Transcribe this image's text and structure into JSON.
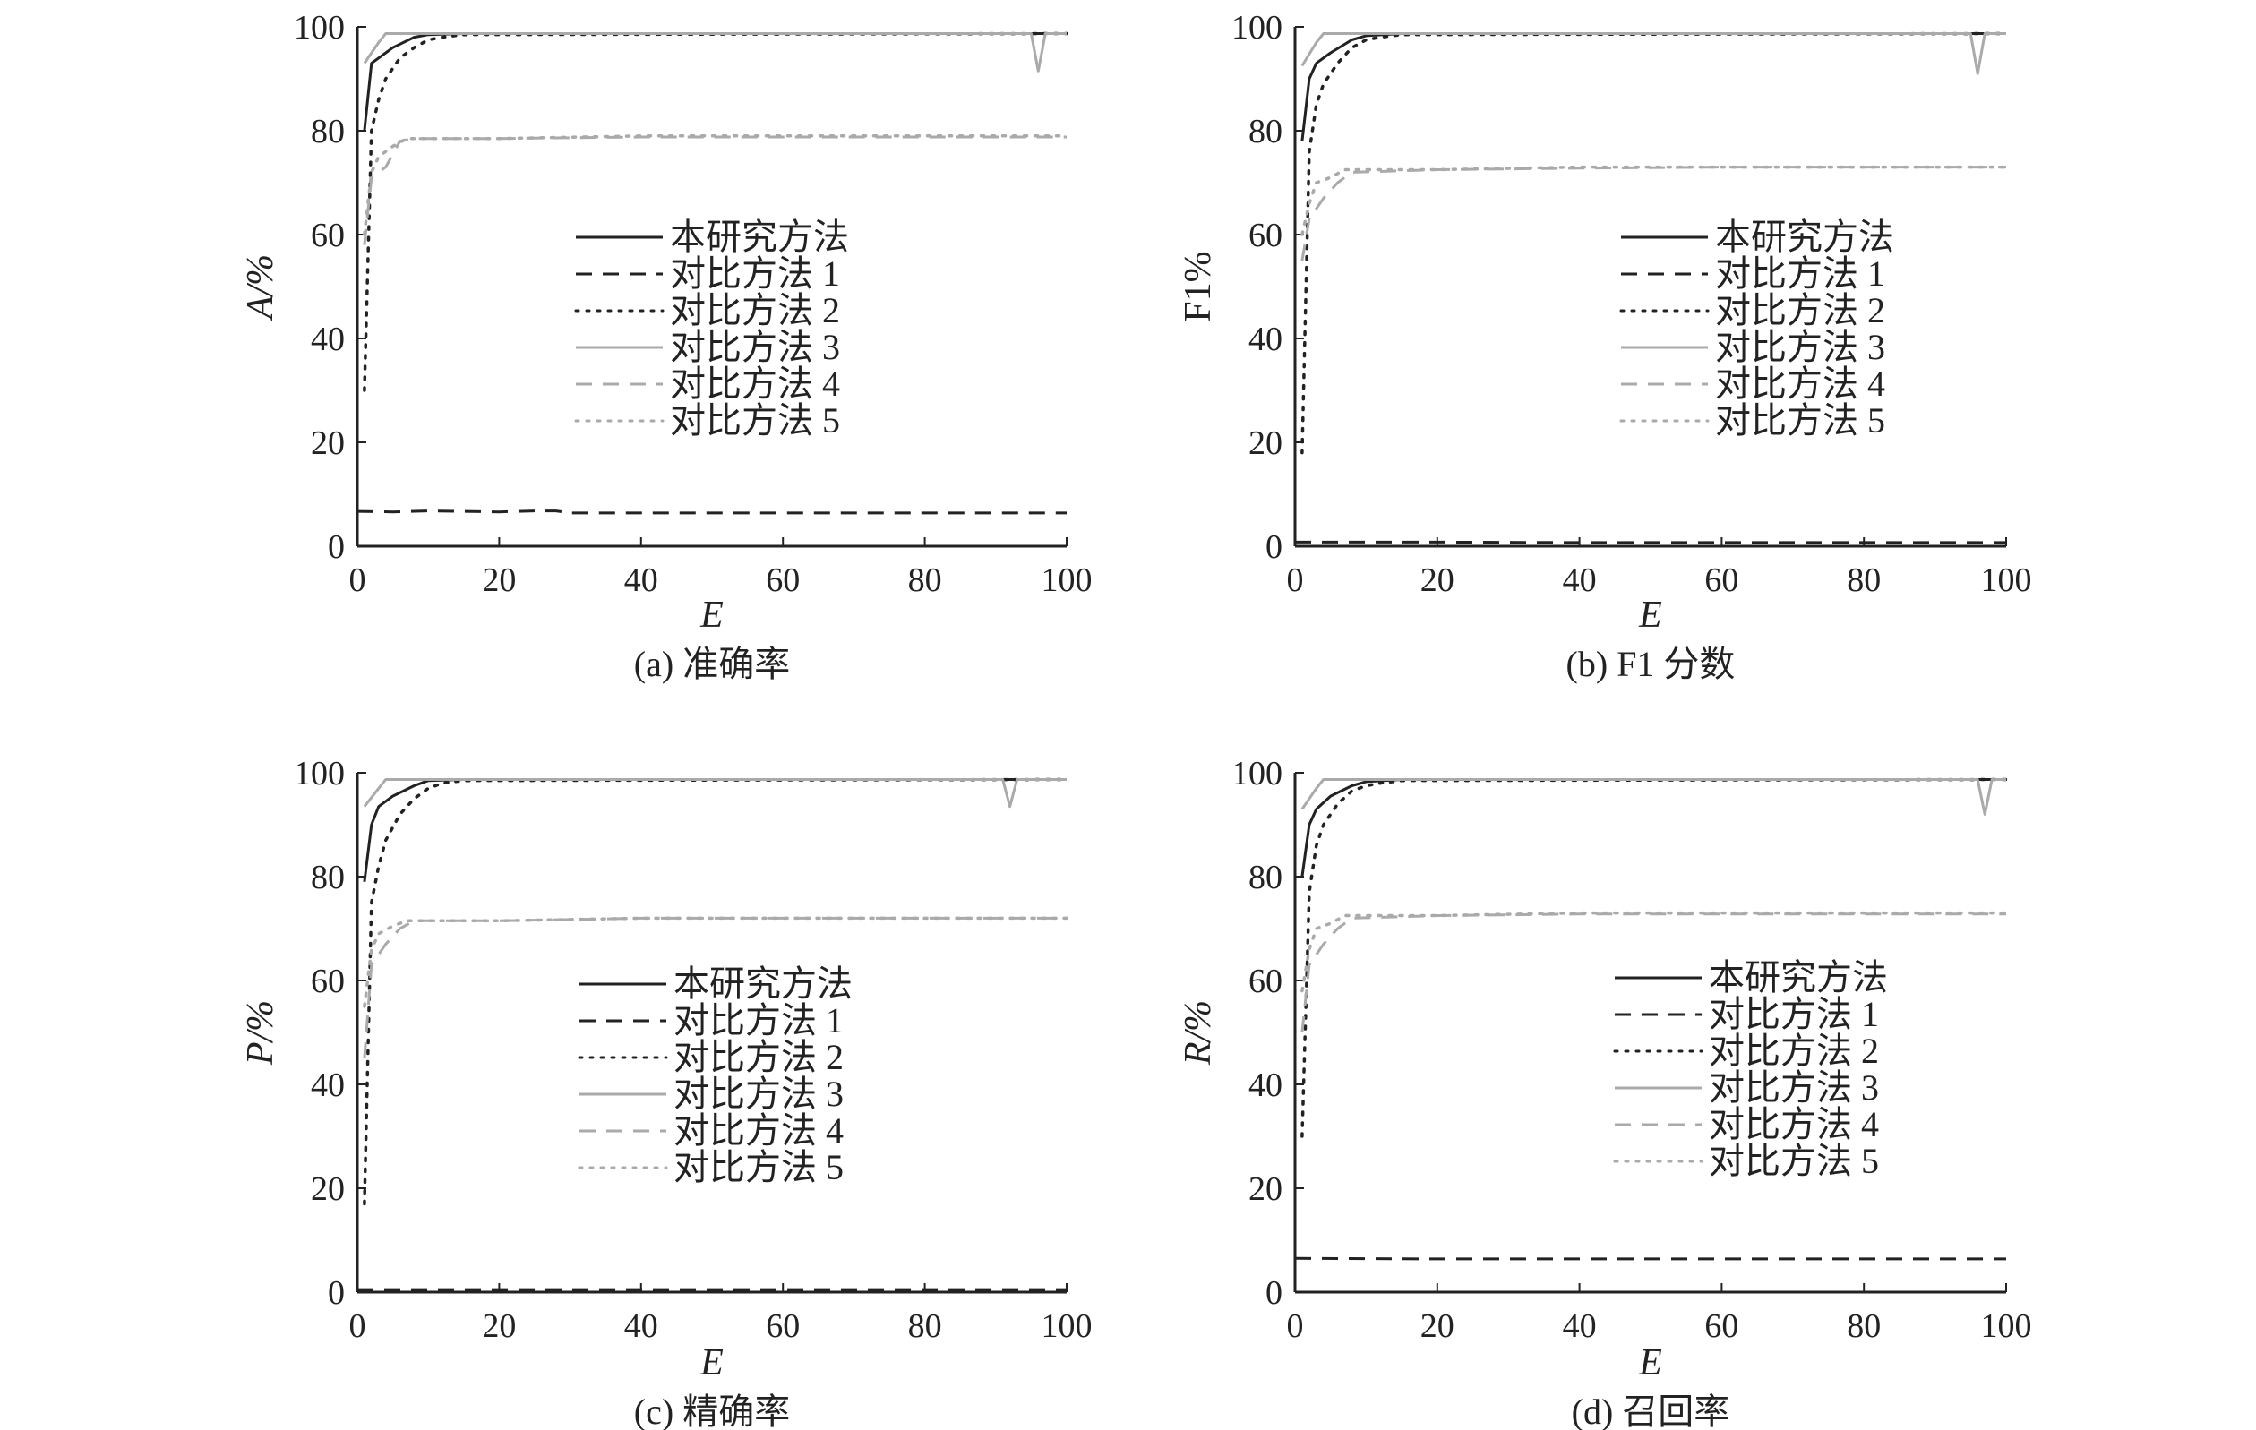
{
  "chart_data": [
    {
      "id": "a",
      "type": "line",
      "caption": "(a) 准确率",
      "xlabel": "E",
      "ylabel": "A/%",
      "xlim": [
        0,
        100
      ],
      "ylim": [
        0,
        100
      ],
      "xticks": [
        0,
        20,
        40,
        60,
        80,
        100
      ],
      "yticks": [
        0,
        20,
        40,
        60,
        80,
        100
      ],
      "grid": false,
      "legend_position": "center-right",
      "series": [
        {
          "name": "本研究方法",
          "style": "solid",
          "color": "#222222",
          "x": [
            1,
            2,
            3,
            5,
            8,
            10,
            15,
            100
          ],
          "y": [
            80,
            93,
            94,
            96,
            98,
            98.5,
            98.7,
            98.7
          ]
        },
        {
          "name": "对比方法 1",
          "style": "dashed",
          "color": "#222222",
          "x": [
            0,
            5,
            10,
            20,
            25,
            28,
            30,
            40,
            60,
            80,
            100
          ],
          "y": [
            6.7,
            6.6,
            6.8,
            6.6,
            6.8,
            6.8,
            6.4,
            6.4,
            6.4,
            6.4,
            6.4
          ]
        },
        {
          "name": "对比方法 2",
          "style": "dotted",
          "color": "#222222",
          "x": [
            1,
            2,
            3,
            4,
            6,
            8,
            10,
            12,
            15,
            100
          ],
          "y": [
            30,
            80,
            86,
            90,
            94,
            96,
            97.5,
            98,
            98.5,
            98.7
          ]
        },
        {
          "name": "对比方法 3",
          "style": "solid",
          "color": "#aaaaaa",
          "x": [
            1,
            3,
            4,
            6,
            95,
            96,
            97,
            100
          ],
          "y": [
            93,
            97,
            98.7,
            98.7,
            98.7,
            91.5,
            98.7,
            98.7
          ]
        },
        {
          "name": "对比方法 4",
          "style": "dashed",
          "color": "#aaaaaa",
          "x": [
            1,
            2,
            4,
            6,
            8,
            20,
            40,
            60,
            80,
            100
          ],
          "y": [
            58,
            71,
            73,
            78,
            78.5,
            78.5,
            78.8,
            78.8,
            78.8,
            78.8
          ]
        },
        {
          "name": "对比方法 5",
          "style": "dotted",
          "color": "#aaaaaa",
          "x": [
            1,
            2,
            3,
            5,
            7,
            20,
            40,
            60,
            80,
            100
          ],
          "y": [
            60,
            72,
            75,
            77,
            78.5,
            78.5,
            79,
            79,
            79,
            79
          ]
        }
      ]
    },
    {
      "id": "b",
      "type": "line",
      "caption": "(b) F1 分数",
      "xlabel": "E",
      "ylabel": "F1%",
      "xlim": [
        0,
        100
      ],
      "ylim": [
        0,
        100
      ],
      "xticks": [
        0,
        20,
        40,
        60,
        80,
        100
      ],
      "yticks": [
        0,
        20,
        40,
        60,
        80,
        100
      ],
      "grid": false,
      "legend_position": "center-right",
      "series": [
        {
          "name": "本研究方法",
          "style": "solid",
          "color": "#222222",
          "x": [
            1,
            2,
            3,
            5,
            8,
            10,
            15,
            100
          ],
          "y": [
            78,
            90,
            93,
            95,
            97.5,
            98.3,
            98.7,
            98.7
          ]
        },
        {
          "name": "对比方法 1",
          "style": "dashed",
          "color": "#222222",
          "x": [
            0,
            20,
            40,
            60,
            80,
            100
          ],
          "y": [
            0.8,
            0.8,
            0.7,
            0.7,
            0.7,
            0.7
          ]
        },
        {
          "name": "对比方法 2",
          "style": "dotted",
          "color": "#222222",
          "x": [
            1,
            2,
            3,
            4,
            6,
            8,
            10,
            12,
            15,
            100
          ],
          "y": [
            18,
            76,
            85,
            89,
            93,
            96,
            97.5,
            98,
            98.5,
            98.7
          ]
        },
        {
          "name": "对比方法 3",
          "style": "solid",
          "color": "#aaaaaa",
          "x": [
            1,
            3,
            4,
            6,
            95,
            96,
            97,
            100
          ],
          "y": [
            92.5,
            97,
            98.7,
            98.7,
            98.7,
            91,
            98.7,
            98.7
          ]
        },
        {
          "name": "对比方法 4",
          "style": "dashed",
          "color": "#aaaaaa",
          "x": [
            1,
            2,
            4,
            6,
            8,
            20,
            40,
            60,
            80,
            100
          ],
          "y": [
            55,
            63,
            67,
            70,
            72,
            72.5,
            72.8,
            73,
            73,
            73
          ]
        },
        {
          "name": "对比方法 5",
          "style": "dotted",
          "color": "#aaaaaa",
          "x": [
            1,
            2,
            3,
            5,
            7,
            20,
            40,
            60,
            80,
            100
          ],
          "y": [
            60,
            66,
            70,
            71,
            72.5,
            72.5,
            73,
            73,
            73,
            73
          ]
        }
      ]
    },
    {
      "id": "c",
      "type": "line",
      "caption": "(c) 精确率",
      "xlabel": "E",
      "ylabel": "P/%",
      "xlim": [
        0,
        100
      ],
      "ylim": [
        0,
        100
      ],
      "xticks": [
        0,
        20,
        40,
        60,
        80,
        100
      ],
      "yticks": [
        0,
        20,
        40,
        60,
        80,
        100
      ],
      "grid": false,
      "legend_position": "center-right",
      "series": [
        {
          "name": "本研究方法",
          "style": "solid",
          "color": "#222222",
          "x": [
            1,
            2,
            3,
            5,
            8,
            10,
            15,
            100
          ],
          "y": [
            79,
            90,
            93.5,
            95.5,
            97.5,
            98.5,
            98.7,
            98.7
          ]
        },
        {
          "name": "对比方法 1",
          "style": "dashed",
          "color": "#222222",
          "x": [
            0,
            20,
            40,
            60,
            80,
            100
          ],
          "y": [
            0.5,
            0.5,
            0.5,
            0.5,
            0.5,
            0.5
          ]
        },
        {
          "name": "对比方法 2",
          "style": "dotted",
          "color": "#222222",
          "x": [
            1,
            2,
            3,
            4,
            6,
            8,
            10,
            12,
            15,
            100
          ],
          "y": [
            17,
            75,
            82,
            87,
            92,
            95,
            97,
            98,
            98.5,
            98.7
          ]
        },
        {
          "name": "对比方法 3",
          "style": "solid",
          "color": "#aaaaaa",
          "x": [
            1,
            3,
            4,
            6,
            91,
            92,
            93,
            100
          ],
          "y": [
            93.5,
            97,
            98.7,
            98.7,
            98.7,
            93.5,
            98.7,
            98.7
          ]
        },
        {
          "name": "对比方法 4",
          "style": "dashed",
          "color": "#aaaaaa",
          "x": [
            1,
            2,
            4,
            6,
            8,
            20,
            40,
            60,
            80,
            100
          ],
          "y": [
            45,
            63,
            67,
            70,
            71.5,
            71.5,
            72,
            72,
            72,
            72
          ]
        },
        {
          "name": "对比方法 5",
          "style": "dotted",
          "color": "#aaaaaa",
          "x": [
            1,
            2,
            3,
            5,
            7,
            20,
            40,
            60,
            80,
            100
          ],
          "y": [
            55,
            66,
            69,
            70.5,
            71.5,
            71.5,
            72,
            72,
            72,
            72
          ]
        }
      ]
    },
    {
      "id": "d",
      "type": "line",
      "caption": "(d) 召回率",
      "xlabel": "E",
      "ylabel": "R/%",
      "xlim": [
        0,
        100
      ],
      "ylim": [
        0,
        100
      ],
      "xticks": [
        0,
        20,
        40,
        60,
        80,
        100
      ],
      "yticks": [
        0,
        20,
        40,
        60,
        80,
        100
      ],
      "grid": false,
      "legend_position": "center-right",
      "series": [
        {
          "name": "本研究方法",
          "style": "solid",
          "color": "#222222",
          "x": [
            1,
            2,
            3,
            5,
            8,
            10,
            15,
            100
          ],
          "y": [
            80,
            90,
            93,
            95.5,
            97.5,
            98.3,
            98.7,
            98.7
          ]
        },
        {
          "name": "对比方法 1",
          "style": "dashed",
          "color": "#222222",
          "x": [
            0,
            20,
            40,
            60,
            80,
            100
          ],
          "y": [
            6.5,
            6.4,
            6.4,
            6.4,
            6.4,
            6.4
          ]
        },
        {
          "name": "对比方法 2",
          "style": "dotted",
          "color": "#222222",
          "x": [
            1,
            2,
            3,
            4,
            6,
            8,
            10,
            12,
            15,
            100
          ],
          "y": [
            30,
            77,
            86,
            90,
            94,
            96.5,
            97.5,
            98,
            98.5,
            98.7
          ]
        },
        {
          "name": "对比方法 3",
          "style": "solid",
          "color": "#aaaaaa",
          "x": [
            1,
            3,
            4,
            6,
            96,
            97,
            98,
            100
          ],
          "y": [
            93,
            97,
            98.7,
            98.7,
            98.7,
            92,
            98.7,
            98.7
          ]
        },
        {
          "name": "对比方法 4",
          "style": "dashed",
          "color": "#aaaaaa",
          "x": [
            1,
            2,
            4,
            6,
            8,
            20,
            40,
            60,
            80,
            100
          ],
          "y": [
            50,
            63,
            67,
            70,
            72,
            72.5,
            72.8,
            72.8,
            72.8,
            72.8
          ]
        },
        {
          "name": "对比方法 5",
          "style": "dotted",
          "color": "#aaaaaa",
          "x": [
            1,
            2,
            3,
            5,
            7,
            20,
            40,
            60,
            80,
            100
          ],
          "y": [
            58,
            66,
            70,
            71,
            72.5,
            72.5,
            73,
            73,
            73,
            73
          ]
        }
      ]
    }
  ]
}
